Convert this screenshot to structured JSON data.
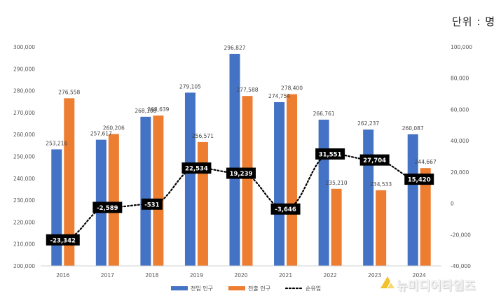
{
  "unit_label": "단위 : 명",
  "watermark": "뉴미디어타임즈",
  "chart_data": {
    "type": "bar",
    "categories": [
      "2016",
      "2017",
      "2018",
      "2019",
      "2020",
      "2021",
      "2022",
      "2023",
      "2024"
    ],
    "series": [
      {
        "name": "전입 인구",
        "kind": "bar",
        "axis": "left",
        "color": "#4472C4",
        "values": [
          253216,
          257617,
          268108,
          279105,
          296827,
          274754,
          266761,
          262237,
          260087
        ],
        "labels": [
          "253,216",
          "257,617",
          "268,108",
          "279,105",
          "296,827",
          "274,754",
          "266,761",
          "262,237",
          "260,087"
        ]
      },
      {
        "name": "전출 인구",
        "kind": "bar",
        "axis": "left",
        "color": "#ED7D31",
        "values": [
          276558,
          260206,
          268639,
          256571,
          277588,
          278400,
          235210,
          234533,
          244667
        ],
        "labels": [
          "276,558",
          "260,206",
          "268,639",
          "256,571",
          "277,588",
          "278,400",
          "235,210",
          "234,533",
          "244,667"
        ]
      },
      {
        "name": "순유입",
        "kind": "line",
        "axis": "right",
        "style": "dotted",
        "color": "#000000",
        "values": [
          -23342,
          -2589,
          -531,
          22534,
          19239,
          -3646,
          31551,
          27704,
          15420
        ],
        "labels": [
          "-23,342",
          "-2,589",
          "-531",
          "22,534",
          "19,239",
          "-3,646",
          "31,551",
          "27,704",
          "15,420"
        ]
      }
    ],
    "ylim_left": [
      200000,
      300000
    ],
    "ylim_right": [
      -40000,
      100000
    ],
    "yticks_left": [
      "200,000",
      "210,000",
      "220,000",
      "230,000",
      "240,000",
      "250,000",
      "260,000",
      "270,000",
      "280,000",
      "290,000",
      "300,000"
    ],
    "yticks_right": [
      "-40,000",
      "-20,000",
      "0",
      "20,000",
      "40,000",
      "60,000",
      "80,000",
      "100,000"
    ],
    "grid": false,
    "legend_position": "bottom"
  }
}
